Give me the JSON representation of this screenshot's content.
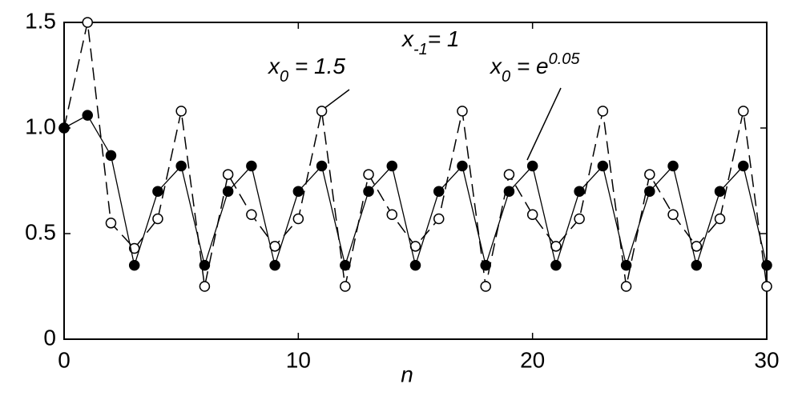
{
  "chart_data": {
    "type": "line",
    "x_label": "n",
    "x": [
      0,
      1,
      2,
      3,
      4,
      5,
      6,
      7,
      8,
      9,
      10,
      11,
      12,
      13,
      14,
      15,
      16,
      17,
      18,
      19,
      20,
      21,
      22,
      23,
      24,
      25,
      26,
      27,
      28,
      29,
      30
    ],
    "series": [
      {
        "name": "x0 = 1.5",
        "color": "#000000",
        "dashed": true,
        "marker": "open",
        "values": [
          1.0,
          1.5,
          0.55,
          0.43,
          0.57,
          1.08,
          0.25,
          0.78,
          0.59,
          0.44,
          0.57,
          1.08,
          0.25,
          0.78,
          0.59,
          0.44,
          0.57,
          1.08,
          0.25,
          0.78,
          0.59,
          0.44,
          0.57,
          1.08,
          0.25,
          0.78,
          0.59,
          0.44,
          0.57,
          1.08,
          0.25
        ]
      },
      {
        "name": "x0 = e^0.05",
        "color": "#000000",
        "dashed": false,
        "marker": "filled",
        "values": [
          1.0,
          1.06,
          0.87,
          0.35,
          0.7,
          0.82,
          0.35,
          0.7,
          0.82,
          0.35,
          0.7,
          0.82,
          0.35,
          0.7,
          0.82,
          0.35,
          0.7,
          0.82,
          0.35,
          0.7,
          0.82,
          0.35,
          0.7,
          0.82,
          0.35,
          0.7,
          0.82,
          0.35,
          0.7,
          0.82,
          0.35
        ]
      }
    ],
    "annotations": [
      {
        "base": "x",
        "sub": "-1",
        "rest": "= 1"
      },
      {
        "base": "x",
        "sub": "0",
        "rest": " = 1.5"
      },
      {
        "base": "x",
        "sub": "0",
        "rest": " = e",
        "sup": "0.05"
      }
    ],
    "xlim": [
      0,
      30
    ],
    "xticks": [
      0,
      10,
      20,
      30
    ],
    "ylim": [
      0,
      1.5
    ],
    "yticks": [
      0,
      0.5,
      {
        "value": 1,
        "label": "1.0"
      },
      1.5
    ]
  }
}
